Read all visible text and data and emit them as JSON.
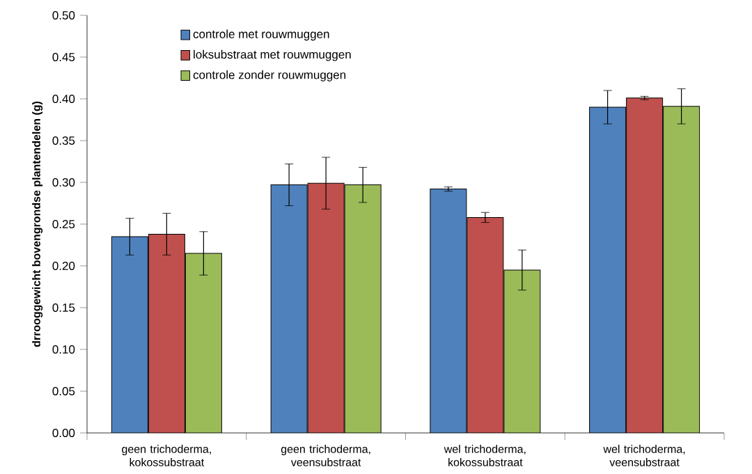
{
  "chart_data": {
    "type": "bar",
    "ylabel": "drrooggewicht bovengrondse plantendelen (g)",
    "categories": [
      "geen trichoderma, kokossubstraat",
      "geen trichoderma, veensubstraat",
      "wel trichoderma, kokossubstraat",
      "wel trichoderma, veensubstraat"
    ],
    "series": [
      {
        "name": "controle met rouwmuggen",
        "color": "#4f81bd",
        "values": [
          0.235,
          0.297,
          0.292,
          0.39
        ],
        "errors": [
          0.022,
          0.025,
          0.0025,
          0.02
        ]
      },
      {
        "name": "loksubstraat met rouwmuggen",
        "color": "#c0504d",
        "values": [
          0.238,
          0.299,
          0.258,
          0.401
        ],
        "errors": [
          0.025,
          0.031,
          0.006,
          0.002
        ]
      },
      {
        "name": "controle zonder rouwmuggen",
        "color": "#9bbb59",
        "values": [
          0.215,
          0.297,
          0.195,
          0.391
        ],
        "errors": [
          0.026,
          0.021,
          0.024,
          0.021
        ]
      }
    ],
    "ylim": [
      0,
      0.5
    ],
    "yticks": [
      {
        "value": 0,
        "label": "0.00"
      },
      {
        "value": 0.05,
        "label": "0.05"
      },
      {
        "value": 0.1,
        "label": "0.10"
      },
      {
        "value": 0.15,
        "label": "0.15"
      },
      {
        "value": 0.2,
        "label": "0.20"
      },
      {
        "value": 0.25,
        "label": "0.25"
      },
      {
        "value": 0.3,
        "label": "0.30"
      },
      {
        "value": 0.35,
        "label": "0.35"
      },
      {
        "value": 0.4,
        "label": "0.40"
      },
      {
        "value": 0.45,
        "label": "0.45"
      },
      {
        "value": 0.5,
        "label": "0.50"
      }
    ],
    "legend": "top left",
    "grid": false
  }
}
